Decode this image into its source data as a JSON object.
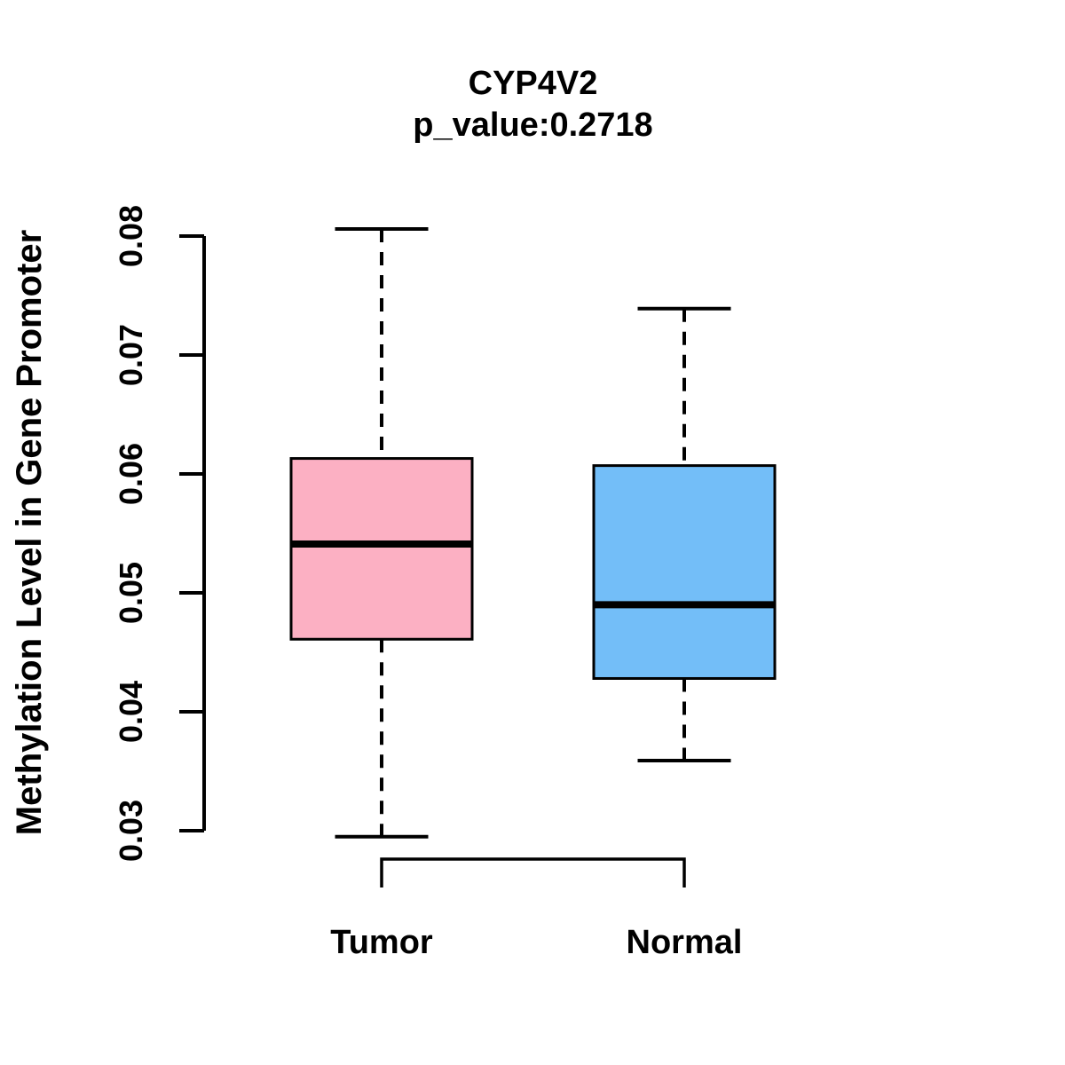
{
  "figure": {
    "title": "CYP4V2",
    "subtitle": "p_value:0.2718",
    "ylabel": "Methylation Level in Gene Promoter"
  },
  "chart_data": {
    "type": "boxplot",
    "title": "CYP4V2",
    "subtitle": "p_value:0.2718",
    "xlabel": "",
    "ylabel": "Methylation Level in Gene Promoter",
    "categories": [
      "Tumor",
      "Normal"
    ],
    "yticks": [
      0.03,
      0.04,
      0.05,
      0.06,
      0.07,
      0.08
    ],
    "ylim": [
      0.0295,
      0.0807
    ],
    "grid": false,
    "legend": "none",
    "p_value": 0.2718,
    "series": [
      {
        "name": "Tumor",
        "fill": "#FCB0C3",
        "whisker_low": 0.0295,
        "q1": 0.0461,
        "median": 0.0541,
        "q3": 0.0613,
        "whisker_high": 0.0806
      },
      {
        "name": "Normal",
        "fill": "#73BEF8",
        "whisker_low": 0.0359,
        "q1": 0.0428,
        "median": 0.049,
        "q3": 0.0607,
        "whisker_high": 0.0739
      }
    ],
    "comparison_bracket": {
      "between": [
        "Tumor",
        "Normal"
      ]
    }
  },
  "colors": {
    "background": "#FFFFFF",
    "line": "#000000",
    "text": "#000000",
    "tumor_fill": "#FCB0C3",
    "normal_fill": "#73BEF8"
  }
}
